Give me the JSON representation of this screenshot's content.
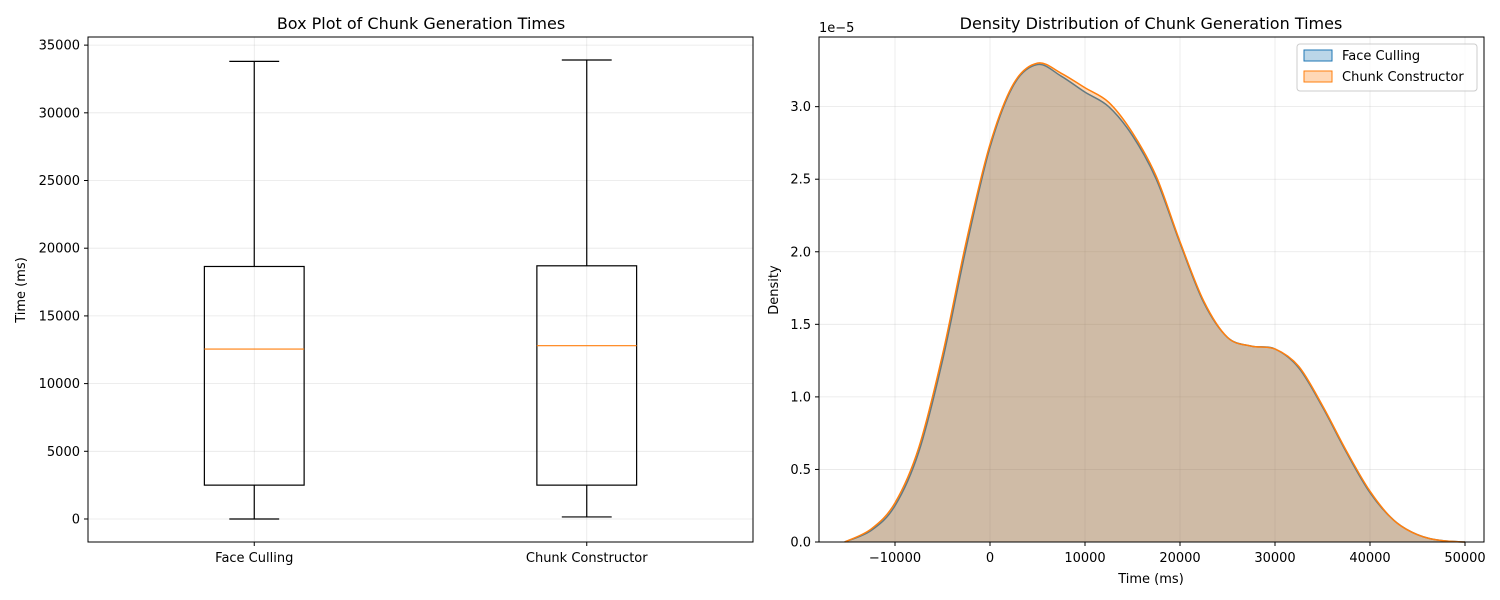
{
  "chart_data": [
    {
      "type": "box",
      "title": "Box Plot of Chunk Generation Times",
      "xlabel": "",
      "ylabel": "Time (ms)",
      "categories": [
        "Face Culling",
        "Chunk Constructor"
      ],
      "ylim": [
        -1700,
        35600
      ],
      "yticks": [
        0,
        5000,
        10000,
        15000,
        20000,
        25000,
        30000,
        35000
      ],
      "grid": true,
      "boxes": [
        {
          "name": "Face Culling",
          "min": 0,
          "q1": 2500,
          "median": 12550,
          "q3": 18650,
          "max": 33800
        },
        {
          "name": "Chunk Constructor",
          "min": 150,
          "q1": 2500,
          "median": 12800,
          "q3": 18700,
          "max": 33900
        }
      ],
      "colors": {
        "box": "#000000",
        "median": "#ff7f0e"
      }
    },
    {
      "type": "area",
      "title": "Density Distribution of Chunk Generation Times",
      "xlabel": "Time (ms)",
      "ylabel": "Density",
      "y_scale_label": "1e−5",
      "xlim": [
        -18000,
        52000
      ],
      "ylim": [
        0,
        3.48
      ],
      "xticks": [
        -10000,
        0,
        10000,
        20000,
        30000,
        40000,
        50000
      ],
      "yticks": [
        0.0,
        0.5,
        1.0,
        1.5,
        2.0,
        2.5,
        3.0
      ],
      "grid": true,
      "legend_position": "top-right",
      "series": [
        {
          "name": "Face Culling",
          "color": "#1f77b4",
          "x": [
            -15300,
            -12500,
            -10000,
            -7500,
            -5000,
            -2500,
            0,
            2500,
            5000,
            7500,
            10000,
            12500,
            15000,
            17500,
            20000,
            22500,
            25000,
            27500,
            30000,
            32500,
            35000,
            37500,
            40000,
            42500,
            45000,
            47500,
            50000
          ],
          "y": [
            0.0,
            0.08,
            0.25,
            0.62,
            1.25,
            2.03,
            2.72,
            3.15,
            3.29,
            3.21,
            3.1,
            3.0,
            2.8,
            2.5,
            2.06,
            1.65,
            1.41,
            1.35,
            1.33,
            1.2,
            0.93,
            0.62,
            0.34,
            0.15,
            0.05,
            0.01,
            0.0
          ]
        },
        {
          "name": "Chunk Constructor",
          "color": "#ff7f0e",
          "x": [
            -15300,
            -12500,
            -10000,
            -7500,
            -5000,
            -2500,
            0,
            2500,
            5000,
            7500,
            10000,
            12500,
            15000,
            17500,
            20000,
            22500,
            25000,
            27500,
            30000,
            32500,
            35000,
            37500,
            40000,
            42500,
            45000,
            47500,
            50000
          ],
          "y": [
            0.0,
            0.09,
            0.27,
            0.65,
            1.29,
            2.07,
            2.74,
            3.16,
            3.3,
            3.23,
            3.13,
            3.03,
            2.82,
            2.52,
            2.07,
            1.66,
            1.41,
            1.35,
            1.33,
            1.21,
            0.94,
            0.63,
            0.35,
            0.15,
            0.05,
            0.01,
            0.0
          ]
        }
      ]
    }
  ]
}
